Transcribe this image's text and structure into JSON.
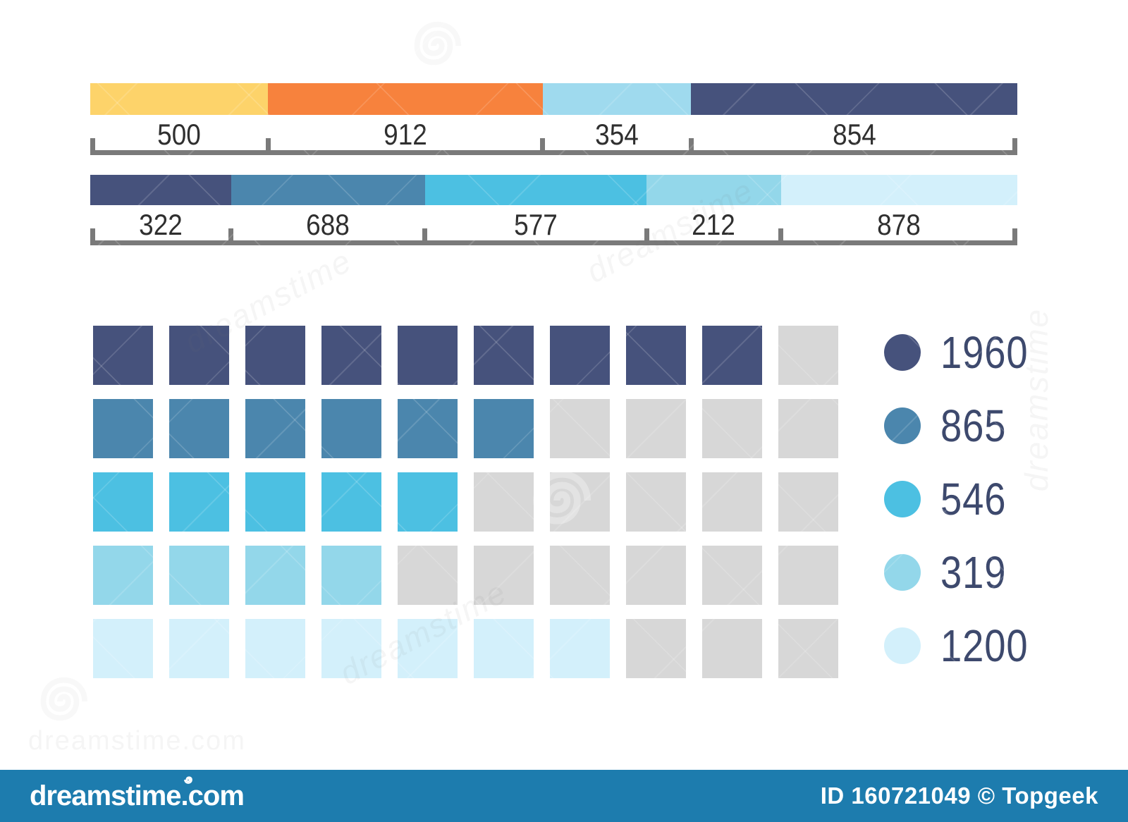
{
  "watermark": {
    "text": "dreamstime",
    "site": "dreamstime.com"
  },
  "footer": {
    "brand": "dreamstime.com",
    "image_id": "ID 160721049 © Topgeek",
    "bg_color": "#1d7cae",
    "text_color": "#ffffff"
  },
  "chart_data": [
    {
      "type": "bar",
      "subtype": "horizontal-stacked-segmented",
      "title": "",
      "segments": [
        {
          "value": 500,
          "color": "#fdd36a",
          "display_pct": 19.2
        },
        {
          "value": 912,
          "color": "#f7823d",
          "display_pct": 29.6
        },
        {
          "value": 354,
          "color": "#9fdaee",
          "display_pct": 16.0
        },
        {
          "value": 854,
          "color": "#46527c",
          "display_pct": 35.2
        }
      ],
      "axis": {
        "bracket_color": "#7a7a7a",
        "label_color": "#2f2f2f",
        "labels_under_segments": true
      }
    },
    {
      "type": "bar",
      "subtype": "horizontal-stacked-segmented",
      "title": "",
      "segments": [
        {
          "value": 322,
          "color": "#46527c",
          "display_pct": 15.2
        },
        {
          "value": 688,
          "color": "#4b86ad",
          "display_pct": 20.9
        },
        {
          "value": 577,
          "color": "#4cc0e2",
          "display_pct": 23.9
        },
        {
          "value": 212,
          "color": "#93d7ea",
          "display_pct": 14.5
        },
        {
          "value": 878,
          "color": "#d3f0fb",
          "display_pct": 25.5
        }
      ],
      "axis": {
        "bracket_color": "#7a7a7a",
        "label_color": "#2f2f2f",
        "labels_under_segments": true
      }
    },
    {
      "type": "waffle",
      "columns": 10,
      "empty_color": "#d7d7d7",
      "legend_position": "right",
      "legend_text_color": "#3d496d",
      "rows": [
        {
          "label": "1960",
          "filled": 9,
          "total": 10,
          "color": "#46527c"
        },
        {
          "label": "865",
          "filled": 6,
          "total": 10,
          "color": "#4b86ad"
        },
        {
          "label": "546",
          "filled": 5,
          "total": 10,
          "color": "#4cc0e2"
        },
        {
          "label": "319",
          "filled": 4,
          "total": 10,
          "color": "#93d7ea"
        },
        {
          "label": "1200",
          "filled": 7,
          "total": 10,
          "color": "#d3f0fb"
        }
      ]
    }
  ]
}
